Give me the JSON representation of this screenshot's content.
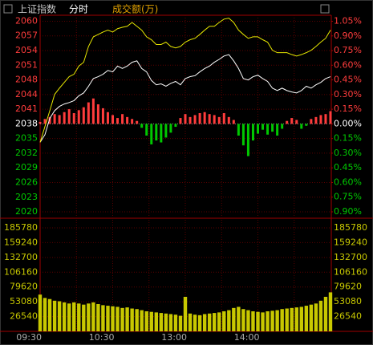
{
  "chart_data": {
    "type": "line",
    "title": "上证指数",
    "subtitle": "分时",
    "volume_title": "成交额(万)",
    "categories": [
      "09:30",
      null,
      null,
      null,
      null,
      null,
      null,
      null,
      null,
      null,
      null,
      null,
      null,
      null,
      null,
      "10:30",
      null,
      null,
      null,
      null,
      null,
      null,
      null,
      null,
      null,
      null,
      null,
      null,
      null,
      null,
      "13:00",
      null,
      null,
      null,
      null,
      null,
      null,
      null,
      null,
      null,
      null,
      null,
      null,
      null,
      null,
      "14:00",
      null,
      null,
      null,
      null,
      null,
      null,
      null,
      null,
      null,
      null,
      null,
      null,
      null,
      null,
      null
    ],
    "ylim": [
      2020.01,
      2059.75
    ],
    "yticks": [
      {
        "value": 2020.01,
        "label": "2020"
      },
      {
        "value": 2023.06,
        "label": "2023"
      },
      {
        "value": 2026.12,
        "label": "2026"
      },
      {
        "value": 2029.18,
        "label": "2029"
      },
      {
        "value": 2032.24,
        "label": "2032"
      },
      {
        "value": 2035.29,
        "label": "2035"
      },
      {
        "value": 2038.35,
        "label": "2038"
      },
      {
        "value": 2041.41,
        "label": "2041"
      },
      {
        "value": 2044.47,
        "label": "2044"
      },
      {
        "value": 2047.52,
        "label": "2048"
      },
      {
        "value": 2050.58,
        "label": "2051"
      },
      {
        "value": 2053.64,
        "label": "2054"
      },
      {
        "value": 2056.7,
        "label": "2057"
      },
      {
        "value": 2059.75,
        "label": "2060"
      }
    ],
    "y2lim": [
      -0.9,
      1.05
    ],
    "y2ticks": [
      {
        "value": -0.9,
        "label": "0.90%"
      },
      {
        "value": -0.75,
        "label": "0.75%"
      },
      {
        "value": -0.6,
        "label": "0.60%"
      },
      {
        "value": -0.45,
        "label": "0.45%"
      },
      {
        "value": -0.3,
        "label": "0.30%"
      },
      {
        "value": -0.15,
        "label": "0.15%"
      },
      {
        "value": 0,
        "label": "0.00%"
      },
      {
        "value": 0.15,
        "label": "0.15%"
      },
      {
        "value": 0.3,
        "label": "0.30%"
      },
      {
        "value": 0.45,
        "label": "0.45%"
      },
      {
        "value": 0.6,
        "label": "0.60%"
      },
      {
        "value": 0.75,
        "label": "0.75%"
      },
      {
        "value": 0.9,
        "label": "0.90%"
      },
      {
        "value": 1.05,
        "label": "1.05%"
      }
    ],
    "up_color": "#ff3c3c",
    "down_color": "#00c800",
    "flat_color": "#ffffff",
    "grid": true,
    "series": [
      {
        "color": "#ffffff",
        "values": [
          2034.5,
          2036.1,
          2039.5,
          2041.1,
          2042,
          2042.5,
          2042.8,
          2043.2,
          2044.2,
          2044.8,
          2046.2,
          2047.8,
          2048.2,
          2048.7,
          2049.5,
          2049.2,
          2050.4,
          2049.9,
          2050.4,
          2051.2,
          2051.5,
          2049.9,
          2049.2,
          2047.4,
          2046.5,
          2046.7,
          2046.2,
          2046.8,
          2047.2,
          2046.5,
          2047.8,
          2048.2,
          2048.4,
          2049.2,
          2049.9,
          2050.4,
          2051.2,
          2051.8,
          2052.5,
          2052.8,
          2051.5,
          2049.9,
          2047.8,
          2047.5,
          2048.2,
          2048.5,
          2047.8,
          2047.2,
          2045.8,
          2045.3,
          2045.8,
          2045.3,
          2045,
          2044.8,
          2045.3,
          2046.2,
          2045.8,
          2046.5,
          2047,
          2047.8,
          2048.2
        ]
      },
      {
        "color": "#e6e600",
        "values": [
          2034.5,
          2037.8,
          2041.1,
          2044.5,
          2045.8,
          2047,
          2048.2,
          2048.7,
          2050.4,
          2051.2,
          2054.5,
          2056.5,
          2057,
          2057.5,
          2057.9,
          2057.5,
          2058.2,
          2058.5,
          2058.7,
          2059.5,
          2058.7,
          2057.9,
          2056.5,
          2055.9,
          2054.9,
          2054.9,
          2055.4,
          2054.5,
          2054.2,
          2054.5,
          2055.4,
          2055.9,
          2056.2,
          2057,
          2057.9,
          2058.7,
          2058.7,
          2059.5,
          2060.2,
          2060.4,
          2059.5,
          2057.9,
          2057,
          2056.2,
          2056.5,
          2056.5,
          2055.9,
          2055.4,
          2053.7,
          2053.2,
          2053.2,
          2053.2,
          2052.8,
          2052.5,
          2052.8,
          2053.2,
          2053.7,
          2054.5,
          2055.4,
          2056.2,
          2057.9
        ]
      }
    ],
    "breadth": {
      "axis": "y2",
      "values": [
        0.02,
        0.05,
        0.07,
        0.1,
        0.09,
        0.12,
        0.15,
        0.11,
        0.14,
        0.17,
        0.22,
        0.26,
        0.2,
        0.16,
        0.12,
        0.09,
        0.06,
        0.1,
        0.07,
        0.05,
        0.03,
        -0.04,
        -0.12,
        -0.21,
        -0.17,
        -0.19,
        -0.14,
        -0.09,
        -0.03,
        0.06,
        0.1,
        0.07,
        0.09,
        0.11,
        0.12,
        0.1,
        0.09,
        0.07,
        0.11,
        0.07,
        0.04,
        -0.12,
        -0.22,
        -0.33,
        -0.17,
        -0.1,
        -0.06,
        -0.11,
        -0.08,
        -0.12,
        -0.05,
        0.03,
        0.06,
        0.04,
        -0.05,
        -0.02,
        0.05,
        0.07,
        0.09,
        0.1,
        0.13
      ]
    },
    "volume": {
      "color": "#c8c800",
      "ylim": [
        0,
        185780
      ],
      "yticks": [
        26540,
        53080,
        79620,
        106160,
        132700,
        159240,
        185780
      ],
      "values": [
        66000,
        60000,
        58000,
        55000,
        54000,
        52000,
        50000,
        52000,
        50000,
        48000,
        50000,
        52000,
        49000,
        47000,
        46000,
        45000,
        44000,
        42000,
        43000,
        41000,
        40000,
        38000,
        36000,
        35000,
        34000,
        33000,
        32000,
        31000,
        30000,
        28000,
        62000,
        32000,
        30000,
        29000,
        31000,
        32000,
        33000,
        34000,
        36000,
        38000,
        42000,
        44000,
        40000,
        38000,
        36000,
        35000,
        34000,
        36000,
        37000,
        38000,
        40000,
        41000,
        42000,
        43000,
        44000,
        46000,
        48000,
        50000,
        55000,
        62000,
        70000
      ]
    }
  }
}
